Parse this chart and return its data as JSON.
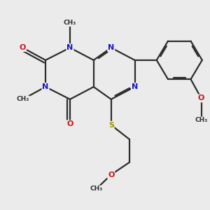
{
  "bg": "#ebebeb",
  "BC": "#2d2d2d",
  "NC": "#1515cc",
  "OC": "#cc1515",
  "SC": "#999900",
  "lw": 1.6,
  "fs": 8.0,
  "xr": [
    -0.5,
    11.5
  ],
  "yr": [
    -1.5,
    9.5
  ]
}
